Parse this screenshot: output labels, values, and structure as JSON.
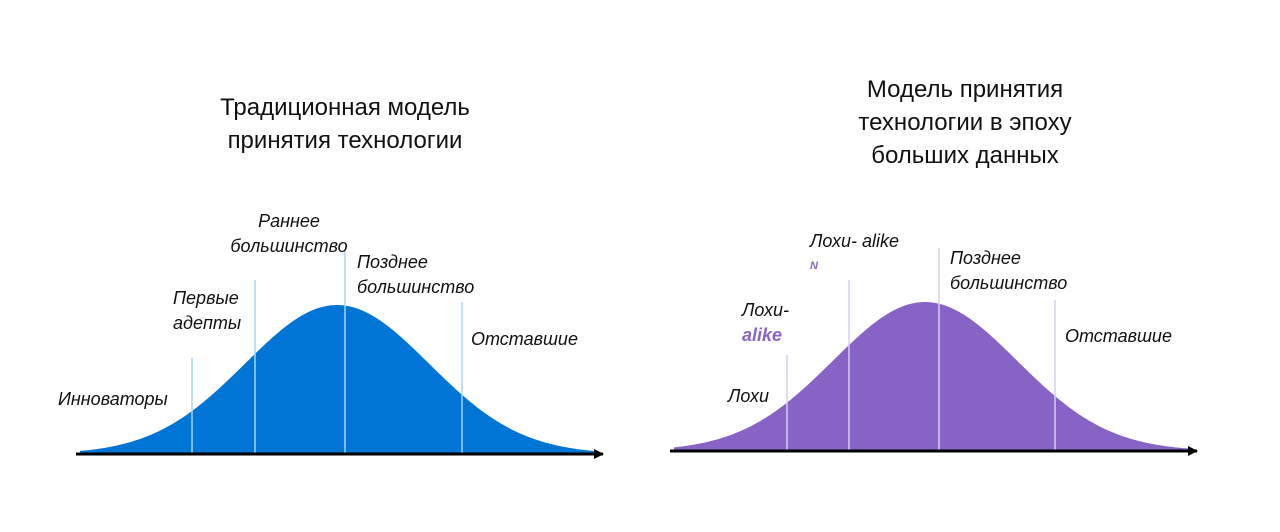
{
  "colors": {
    "left_curve": "#0175d6",
    "right_curve": "#8763c6",
    "divider": "#a9d5f5",
    "divider_right": "#d7cdf0",
    "accent_text": "#8a63c9",
    "axis": "#000000"
  },
  "left": {
    "title": [
      "Традиционная модель",
      "принятия технологии"
    ],
    "labels": {
      "innovators": "Инноваторы",
      "early_adopters": [
        "Первые",
        "адепты"
      ],
      "early_majority": [
        "Раннее",
        "большинство"
      ],
      "late_majority": [
        "Позднее",
        "большинство"
      ],
      "laggards": "Отставшие"
    }
  },
  "right": {
    "title": [
      "Модель принятия",
      "технологии в эпоху",
      "больших данных"
    ],
    "labels": {
      "suckers": "Лохи",
      "suckers_alike_prefix": "Лохи-",
      "suckers_alike_accent": "alike",
      "suckers_alike_n_base": "Лохи- alike",
      "suckers_alike_n_power": "N",
      "late_majority": [
        "Позднее",
        "большинство"
      ],
      "laggards": "Отставшие"
    }
  }
}
